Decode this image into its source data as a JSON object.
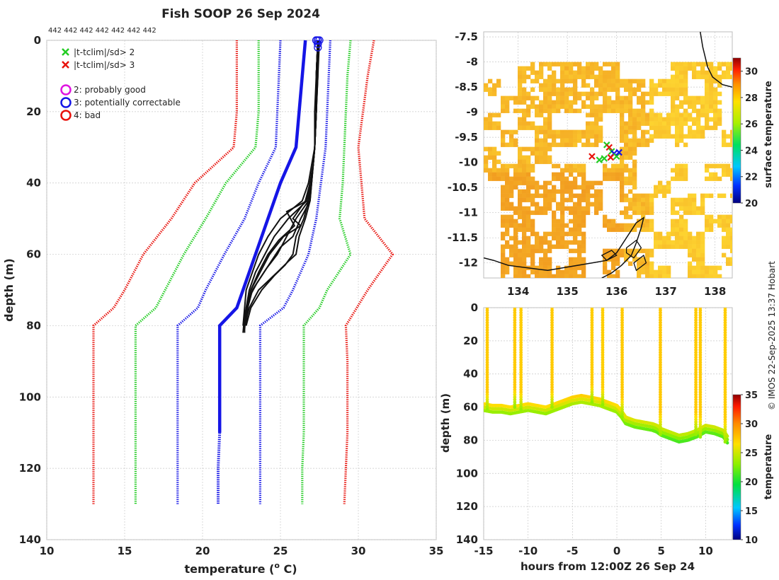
{
  "title": "Fish SOOP 26 Sep 2024",
  "credit": "© IMOS 22-Sep-2025 13:37 Hobart",
  "colors": {
    "bad": "#e8120c",
    "sd2": "#22cc22",
    "blue": "#1515e6",
    "magenta": "#e014e0",
    "black": "#111111",
    "grid": "#c8c8c8",
    "ssta_low": "#f0a030"
  },
  "chart_data": [
    {
      "id": "profile",
      "type": "line",
      "title": "Fish SOOP 26 Sep 2024",
      "xlabel": "temperature (",
      "xlabel_sup": "o",
      "xlabel_tail": " C)",
      "ylabel": "depth (m)",
      "xlim": [
        10,
        35
      ],
      "ylim": [
        0,
        140
      ],
      "y_reversed": true,
      "x_ticks": [
        "10",
        "15",
        "20",
        "25",
        "30",
        "35"
      ],
      "y_ticks": [
        "0",
        "20",
        "40",
        "60",
        "80",
        "100",
        "120",
        "140"
      ],
      "grid": true,
      "top_note": "442 442 442 442 442 442 442",
      "legend_position": "top-left",
      "legend_cross": [
        {
          "label": "|t-tclim|/sd> 2",
          "color": "#22cc22"
        },
        {
          "label": "|t-tclim|/sd> 3",
          "color": "#e8120c"
        }
      ],
      "legend_circle": [
        {
          "label": "2: probably good",
          "color": "#e014e0"
        },
        {
          "label": "3: potentially correctable",
          "color": "#1515e6"
        },
        {
          "label": "4: bad",
          "color": "#e8120c"
        }
      ],
      "climatology_series": [
        {
          "name": "clim -3sd",
          "color": "#e8120c",
          "depth": [
            0,
            10,
            20,
            30,
            40,
            50,
            60,
            70,
            75,
            80,
            90,
            100,
            110,
            120,
            130
          ],
          "temp": [
            22.2,
            22.2,
            22.2,
            22.0,
            19.5,
            18.0,
            16.2,
            15.0,
            14.3,
            13.0,
            13.0,
            13.0,
            13.0,
            13.0,
            13.0
          ]
        },
        {
          "name": "clim -2sd",
          "color": "#22cc22",
          "depth": [
            0,
            10,
            20,
            30,
            40,
            50,
            60,
            70,
            75,
            80,
            90,
            100,
            110,
            120,
            130
          ],
          "temp": [
            23.6,
            23.6,
            23.6,
            23.4,
            21.5,
            20.2,
            18.8,
            17.6,
            17.0,
            15.7,
            15.7,
            15.7,
            15.7,
            15.7,
            15.7
          ]
        },
        {
          "name": "clim -1sd",
          "color": "#1515e6",
          "depth": [
            0,
            10,
            20,
            30,
            40,
            50,
            60,
            70,
            75,
            80,
            90,
            100,
            110,
            120,
            130
          ],
          "temp": [
            25.0,
            24.9,
            24.8,
            24.7,
            23.6,
            22.7,
            21.4,
            20.2,
            19.7,
            18.4,
            18.4,
            18.4,
            18.4,
            18.4,
            18.4
          ]
        },
        {
          "name": "clim +1sd",
          "color": "#1515e6",
          "depth": [
            0,
            10,
            20,
            30,
            40,
            50,
            60,
            70,
            75,
            80,
            90,
            100,
            110,
            120,
            130
          ],
          "temp": [
            28.2,
            28.1,
            28.0,
            27.9,
            27.6,
            27.3,
            26.8,
            25.8,
            25.2,
            23.7,
            23.7,
            23.7,
            23.7,
            23.7,
            23.7
          ]
        },
        {
          "name": "clim +2sd",
          "color": "#22cc22",
          "depth": [
            0,
            10,
            20,
            30,
            40,
            50,
            60,
            70,
            75,
            80,
            90,
            100,
            110,
            120,
            130
          ],
          "temp": [
            29.5,
            29.3,
            29.2,
            29.1,
            29.0,
            28.8,
            29.5,
            28.0,
            27.5,
            26.5,
            26.5,
            26.5,
            26.5,
            26.4,
            26.4
          ]
        },
        {
          "name": "clim +3sd",
          "color": "#e8120c",
          "depth": [
            0,
            10,
            20,
            30,
            40,
            50,
            60,
            70,
            75,
            80,
            90,
            100,
            110,
            120,
            130
          ],
          "temp": [
            31.0,
            30.6,
            30.3,
            30.0,
            30.2,
            30.4,
            32.2,
            30.6,
            29.9,
            29.2,
            29.3,
            29.3,
            29.3,
            29.2,
            29.1
          ]
        }
      ],
      "mean_series": {
        "name": "climatology mean",
        "color": "#1515e6",
        "depth": [
          0,
          10,
          20,
          30,
          40,
          50,
          60,
          70,
          75,
          80,
          90,
          100,
          110,
          120,
          130
        ],
        "temp": [
          26.6,
          26.4,
          26.2,
          26.0,
          25.0,
          24.2,
          23.4,
          22.6,
          22.2,
          21.1,
          21.1,
          21.1,
          21.1,
          21.0,
          21.0
        ]
      },
      "observed_profiles": [
        {
          "depth": [
            0,
            10,
            20,
            30,
            35,
            40,
            45,
            50,
            55,
            60,
            65,
            70,
            75,
            78,
            82
          ],
          "temp": [
            27.4,
            27.3,
            27.3,
            27.2,
            27.1,
            26.9,
            26.7,
            25.5,
            24.6,
            24.0,
            23.4,
            23.0,
            22.8,
            22.7,
            22.7
          ]
        },
        {
          "depth": [
            0,
            10,
            20,
            30,
            35,
            40,
            45,
            50,
            55,
            60,
            65,
            70,
            75,
            80
          ],
          "temp": [
            27.4,
            27.3,
            27.2,
            27.2,
            27.0,
            26.8,
            26.4,
            25.0,
            24.2,
            23.6,
            23.2,
            22.8,
            22.7,
            22.6
          ]
        },
        {
          "depth": [
            0,
            10,
            20,
            30,
            35,
            40,
            45,
            50,
            55,
            58,
            62,
            66,
            70,
            75,
            80
          ],
          "temp": [
            27.4,
            27.4,
            27.3,
            27.2,
            27.1,
            27.0,
            26.9,
            26.3,
            25.8,
            25.0,
            24.4,
            23.8,
            23.2,
            22.9,
            22.8
          ]
        },
        {
          "depth": [
            0,
            10,
            20,
            30,
            35,
            40,
            45,
            50,
            52,
            55,
            60,
            65,
            70,
            76,
            81
          ],
          "temp": [
            27.5,
            27.4,
            27.3,
            27.2,
            27.1,
            26.9,
            26.6,
            25.8,
            26.3,
            25.2,
            24.3,
            23.7,
            23.1,
            22.8,
            22.7
          ]
        },
        {
          "depth": [
            0,
            10,
            20,
            30,
            35,
            40,
            45,
            50,
            55,
            60,
            63,
            66,
            70,
            75,
            80
          ],
          "temp": [
            27.4,
            27.3,
            27.3,
            27.2,
            27.1,
            27.0,
            26.8,
            26.5,
            26.0,
            25.8,
            25.3,
            24.6,
            23.8,
            23.1,
            22.8
          ]
        },
        {
          "depth": [
            0,
            10,
            20,
            30,
            35,
            40,
            45,
            50,
            55,
            60,
            64,
            68,
            72,
            77,
            82
          ],
          "temp": [
            27.4,
            27.3,
            27.3,
            27.2,
            27.1,
            26.9,
            26.8,
            26.0,
            25.4,
            24.8,
            24.1,
            23.5,
            23.0,
            22.7,
            22.6
          ]
        },
        {
          "depth": [
            0,
            10,
            20,
            30,
            35,
            40,
            45,
            48,
            52,
            56,
            60,
            65,
            70,
            75,
            80
          ],
          "temp": [
            27.4,
            27.3,
            27.3,
            27.2,
            27.1,
            26.9,
            26.7,
            25.4,
            25.9,
            24.9,
            24.2,
            23.6,
            23.1,
            22.9,
            22.8
          ]
        },
        {
          "depth": [
            0,
            10,
            20,
            30,
            35,
            40,
            45,
            50,
            55,
            60,
            62,
            65,
            70,
            75,
            80
          ],
          "temp": [
            27.4,
            27.3,
            27.3,
            27.2,
            27.1,
            27.0,
            26.9,
            26.6,
            26.2,
            26.0,
            25.5,
            24.8,
            23.6,
            23.0,
            22.7
          ]
        }
      ],
      "surface_markers": {
        "depth": [
          0,
          0,
          0,
          0,
          0,
          1,
          1,
          2
        ],
        "temp": [
          27.3,
          27.4,
          27.5,
          27.4,
          27.3,
          27.4,
          27.4,
          27.4
        ]
      }
    },
    {
      "id": "map",
      "type": "heatmap",
      "xlim": [
        133.3,
        138.35
      ],
      "ylim": [
        -12.3,
        -7.4
      ],
      "x_ticks": [
        "134",
        "135",
        "136",
        "137",
        "138"
      ],
      "y_ticks": [
        "-7.5",
        "-8",
        "-8.5",
        "-9",
        "-9.5",
        "-10",
        "-10.5",
        "-11",
        "-11.5",
        "-12"
      ],
      "colorbar_label": "surface temperature",
      "colorbar_range": [
        20,
        31
      ],
      "colorbar_ticks": [
        "20",
        "22",
        "24",
        "26",
        "28",
        "30"
      ],
      "sst_top_lat": -8.0,
      "sst_range": [
        26.5,
        28.6
      ],
      "track_markers": [
        {
          "lon": 135.5,
          "lat": -9.88,
          "color": "#e8120c"
        },
        {
          "lon": 135.65,
          "lat": -9.95,
          "color": "#22cc22"
        },
        {
          "lon": 135.75,
          "lat": -9.92,
          "color": "#22cc22"
        },
        {
          "lon": 135.8,
          "lat": -9.65,
          "color": "#22cc22"
        },
        {
          "lon": 135.85,
          "lat": -9.7,
          "color": "#e8120c"
        },
        {
          "lon": 135.9,
          "lat": -9.78,
          "color": "#22cc22"
        },
        {
          "lon": 135.95,
          "lat": -9.82,
          "color": "#1515e6"
        },
        {
          "lon": 136.0,
          "lat": -9.88,
          "color": "#22cc22"
        },
        {
          "lon": 135.88,
          "lat": -9.9,
          "color": "#e8120c"
        },
        {
          "lon": 136.05,
          "lat": -9.8,
          "color": "#1515e6"
        }
      ],
      "coastline_north": [
        [
          137.7,
          -7.4
        ],
        [
          137.75,
          -7.7
        ],
        [
          137.85,
          -8.1
        ],
        [
          137.95,
          -8.3
        ],
        [
          138.15,
          -8.45
        ],
        [
          138.35,
          -8.5
        ]
      ],
      "coastline_south": [
        [
          133.3,
          -11.9
        ],
        [
          133.5,
          -11.95
        ],
        [
          133.8,
          -12.05
        ],
        [
          134.2,
          -12.1
        ],
        [
          134.6,
          -12.15
        ],
        [
          134.9,
          -12.1
        ],
        [
          135.2,
          -12.05
        ],
        [
          135.5,
          -12.0
        ],
        [
          135.8,
          -11.95
        ],
        [
          136.0,
          -11.8
        ],
        [
          136.2,
          -11.5
        ],
        [
          136.4,
          -11.2
        ],
        [
          136.55,
          -11.1
        ],
        [
          136.5,
          -11.3
        ],
        [
          136.4,
          -11.6
        ],
        [
          136.3,
          -11.85
        ],
        [
          136.1,
          -12.05
        ],
        [
          135.9,
          -12.2
        ],
        [
          135.7,
          -12.3
        ]
      ],
      "island_outlines": [
        [
          [
            136.2,
            -11.7
          ],
          [
            136.4,
            -11.55
          ],
          [
            136.5,
            -11.7
          ],
          [
            136.35,
            -11.9
          ],
          [
            136.2,
            -11.8
          ]
        ],
        [
          [
            136.35,
            -12.0
          ],
          [
            136.55,
            -11.85
          ],
          [
            136.6,
            -12.0
          ],
          [
            136.4,
            -12.15
          ]
        ],
        [
          [
            135.7,
            -11.85
          ],
          [
            135.9,
            -11.75
          ],
          [
            136.0,
            -11.85
          ],
          [
            135.8,
            -11.95
          ]
        ]
      ]
    },
    {
      "id": "section",
      "type": "scatter",
      "xlabel": "hours from 12:00Z 26 Sep 24",
      "ylabel": "depth (m)",
      "xlim": [
        -15,
        13
      ],
      "ylim": [
        0,
        140
      ],
      "y_reversed": true,
      "x_ticks": [
        "-15",
        "-10",
        "-5",
        "0",
        "5",
        "10"
      ],
      "y_ticks": [
        "0",
        "20",
        "40",
        "60",
        "80",
        "100",
        "120",
        "140"
      ],
      "colorbar_label": "temperature",
      "colorbar_range": [
        10,
        35
      ],
      "colorbar_ticks": [
        "10",
        "15",
        "20",
        "25",
        "30",
        "35"
      ],
      "casts": [
        {
          "hour": -14.6,
          "depth": 62,
          "surface_temp": 27.4
        },
        {
          "hour": -11.5,
          "depth": 60,
          "surface_temp": 27.4
        },
        {
          "hour": -10.8,
          "depth": 62,
          "surface_temp": 27.3
        },
        {
          "hour": -7.3,
          "depth": 61,
          "surface_temp": 27.4
        },
        {
          "hour": -2.8,
          "depth": 57,
          "surface_temp": 27.3
        },
        {
          "hour": -1.6,
          "depth": 59,
          "surface_temp": 27.2
        },
        {
          "hour": 0.6,
          "depth": 66,
          "surface_temp": 27.4
        },
        {
          "hour": 4.9,
          "depth": 77,
          "surface_temp": 27.5
        },
        {
          "hour": 8.9,
          "depth": 77,
          "surface_temp": 27.4
        },
        {
          "hour": 9.4,
          "depth": 79,
          "surface_temp": 27.4
        },
        {
          "hour": 12.2,
          "depth": 82,
          "surface_temp": 27.3
        }
      ],
      "bottom_track": {
        "hour": [
          -15.0,
          -14.0,
          -13.0,
          -12.0,
          -11.0,
          -10.0,
          -9.0,
          -8.0,
          -7.0,
          -6.0,
          -5.0,
          -4.0,
          -3.0,
          -2.0,
          -1.0,
          0.0,
          0.5,
          1.0,
          2.0,
          3.0,
          4.0,
          4.5,
          5.0,
          6.0,
          7.0,
          8.0,
          9.0,
          10.0,
          11.0,
          12.0,
          12.5
        ],
        "depth": [
          62,
          63,
          63,
          64,
          63,
          62,
          63,
          64,
          62,
          60,
          58,
          57,
          58,
          59,
          61,
          63,
          66,
          70,
          72,
          73,
          74,
          75,
          77,
          79,
          81,
          80,
          78,
          75,
          76,
          78,
          82
        ],
        "temp": [
          23.5,
          23.4,
          23.4,
          23.3,
          23.4,
          23.5,
          23.4,
          23.3,
          23.5,
          23.7,
          23.9,
          24.0,
          23.9,
          23.8,
          23.6,
          23.4,
          23.0,
          22.5,
          22.2,
          22.1,
          22.0,
          21.9,
          21.7,
          21.5,
          21.3,
          21.4,
          21.6,
          21.9,
          21.8,
          21.6,
          21.2
        ]
      }
    }
  ]
}
